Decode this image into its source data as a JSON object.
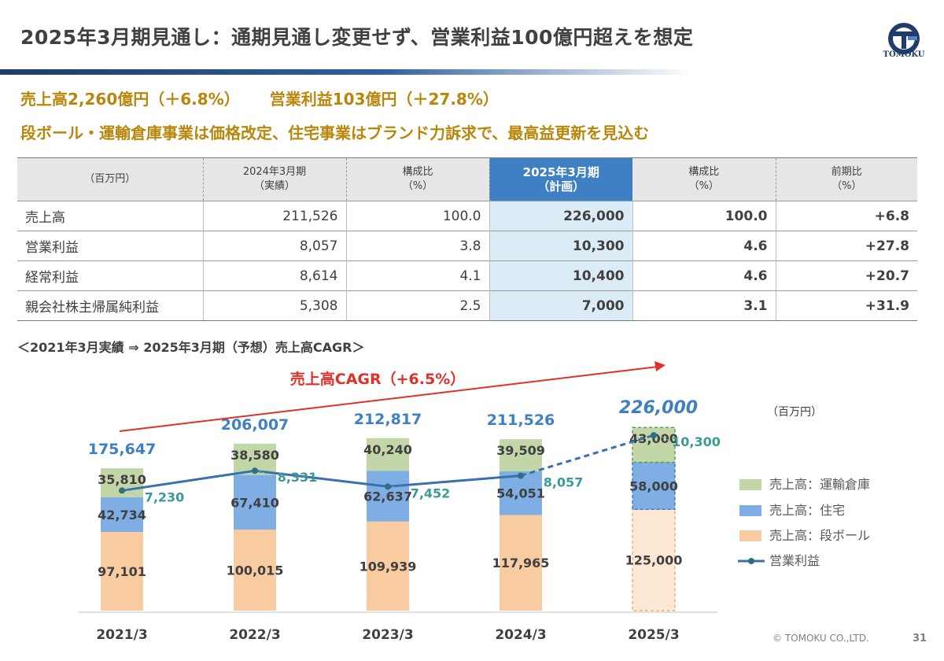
{
  "header": {
    "title": "2025年3月期見通し：通期見通し変更せず、営業利益100億円超えを想定",
    "logo_text": "TOMOKU"
  },
  "headline": {
    "line1_a": "売上高2,260億円（＋6.8%）",
    "line1_b": "営業利益103億円（＋27.8%）",
    "line2": "段ボール・運輸倉庫事業は価格改定、住宅事業はブランド力訴求で、最高益更新を見込む"
  },
  "table": {
    "unit": "（百万円）",
    "columns": [
      {
        "l1": "2024年3月期",
        "l2": "（実績）"
      },
      {
        "l1": "構成比",
        "l2": "（%）"
      },
      {
        "l1": "2025年3月期",
        "l2": "（計画）"
      },
      {
        "l1": "構成比",
        "l2": "（%）"
      },
      {
        "l1": "前期比",
        "l2": "（%）"
      }
    ],
    "rows": [
      {
        "label": "売上高",
        "v": [
          "211,526",
          "100.0",
          "226,000",
          "100.0",
          "+6.8"
        ]
      },
      {
        "label": "営業利益",
        "v": [
          "8,057",
          "3.8",
          "10,300",
          "4.6",
          "+27.8"
        ]
      },
      {
        "label": "経常利益",
        "v": [
          "8,614",
          "4.1",
          "10,400",
          "4.6",
          "+20.7"
        ]
      },
      {
        "label": "親会社株主帰属純利益",
        "v": [
          "5,308",
          "2.5",
          "7,000",
          "3.1",
          "+31.9"
        ]
      }
    ]
  },
  "chart_heading": "＜2021年3月実績 ⇒ 2025年3月期（予想）売上高CAGR＞",
  "chart_data": {
    "type": "bar",
    "stacked": true,
    "unit_label": "（百万円）",
    "cagr_label": "売上高CAGR（+6.5%）",
    "categories": [
      "2021/3",
      "2022/3",
      "2023/3",
      "2024/3",
      "2025/3"
    ],
    "totals": [
      "175,647",
      "206,007",
      "212,817",
      "211,526",
      "226,000"
    ],
    "forecast_index": 4,
    "series": [
      {
        "name": "売上高：段ボール",
        "color": "#f8cba0",
        "values": [
          97101,
          100015,
          109939,
          117965,
          125000
        ],
        "labels": [
          "97,101",
          "100,015",
          "109,939",
          "117,965",
          "125,000"
        ]
      },
      {
        "name": "売上高：住宅",
        "color": "#7eaee3",
        "values": [
          42734,
          67410,
          62637,
          54051,
          58000
        ],
        "labels": [
          "42,734",
          "67,410",
          "62,637",
          "54,051",
          "58,000"
        ]
      },
      {
        "name": "売上高：運輸倉庫",
        "color": "#c3d6a8",
        "values": [
          35810,
          38580,
          40240,
          39509,
          43000
        ],
        "labels": [
          "35,810",
          "38,580",
          "40,240",
          "39,509",
          "43,000"
        ]
      }
    ],
    "line": {
      "name": "営業利益",
      "color": "#3a6fb0",
      "values": [
        7230,
        8331,
        7452,
        8057,
        10300
      ],
      "labels": [
        "7,230",
        "8,331",
        "7,452",
        "8,057",
        "10,300"
      ]
    },
    "legend_position": "right",
    "legend_order": [
      "売上高：運輸倉庫",
      "売上高：住宅",
      "売上高：段ボール",
      "営業利益"
    ],
    "colors": {
      "total_label": "#3f7fc4",
      "line_label": "#3a9a9a",
      "cagr": "#e0302a"
    }
  },
  "footer": {
    "copyright": "© TOMOKU CO.,LTD.",
    "page": "31"
  }
}
